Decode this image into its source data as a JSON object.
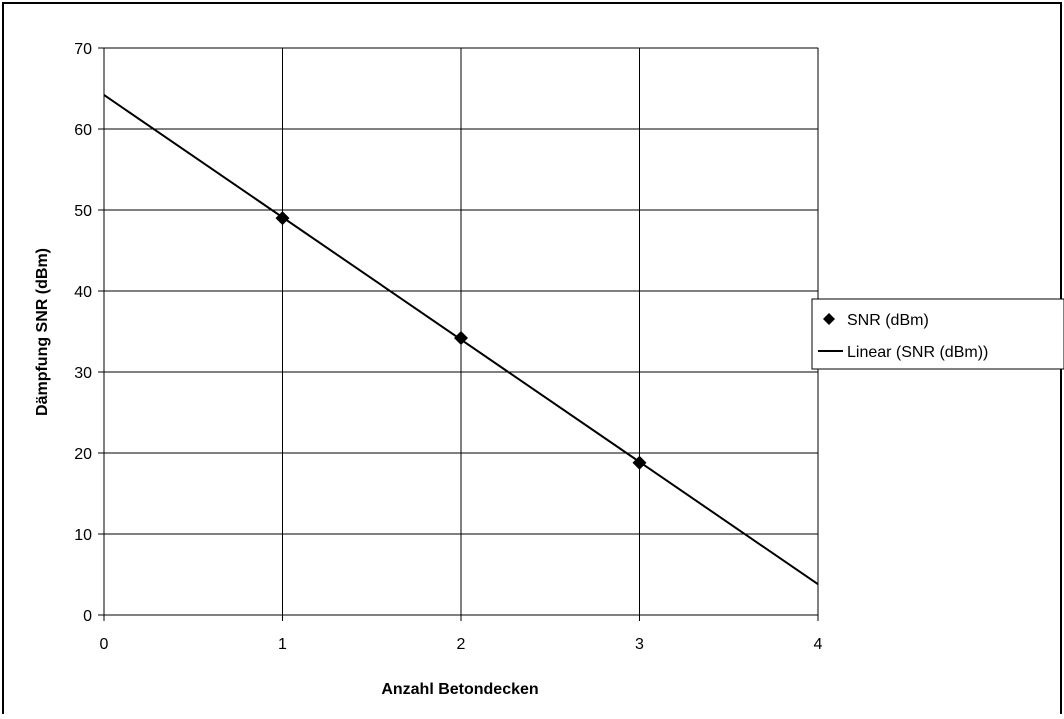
{
  "chart_data": {
    "type": "scatter",
    "title": "",
    "xlabel": "Anzahl Betondecken",
    "ylabel": "Dämpfung SNR (dBm)",
    "xlim": [
      0,
      4
    ],
    "ylim": [
      0,
      70
    ],
    "x_ticks": [
      "0",
      "1",
      "2",
      "3",
      "4"
    ],
    "y_ticks": [
      "0",
      "10",
      "20",
      "30",
      "40",
      "50",
      "60",
      "70"
    ],
    "grid": true,
    "legend_position": "right",
    "series": [
      {
        "name": "SNR (dBm)",
        "type": "scatter",
        "marker": "diamond",
        "color": "#000000",
        "x": [
          1,
          2,
          3
        ],
        "y": [
          49,
          34.2,
          18.8
        ]
      },
      {
        "name": "Linear (SNR (dBm))",
        "type": "line",
        "color": "#000000",
        "x": [
          0,
          4
        ],
        "y": [
          64.2,
          3.8
        ]
      }
    ]
  }
}
